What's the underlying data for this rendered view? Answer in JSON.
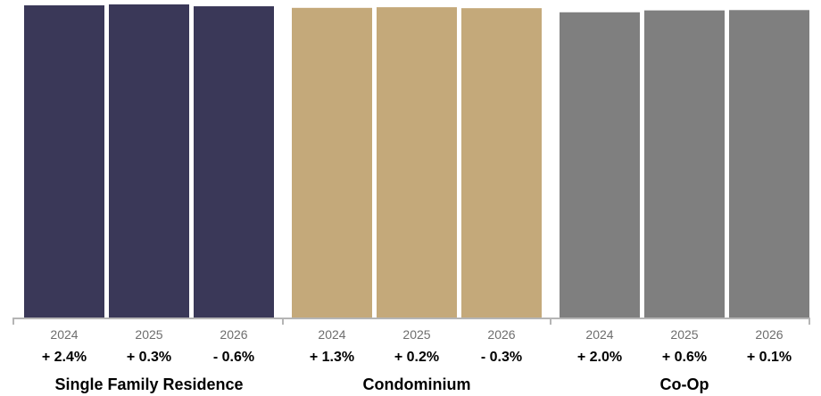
{
  "chart_data": {
    "type": "bar",
    "title": "",
    "xlabel": "",
    "ylabel": "",
    "ylim": [
      0,
      100
    ],
    "grid": false,
    "groups": [
      {
        "name": "Single Family Residence",
        "color": "#3a3858",
        "bars": [
          {
            "year": "2024",
            "value": 98.6,
            "label": "98.6%",
            "change": "+ 2.4%"
          },
          {
            "year": "2025",
            "value": 98.9,
            "label": "98.9%",
            "change": "+ 0.3%"
          },
          {
            "year": "2026",
            "value": 98.3,
            "label": "98.3%",
            "change": "- 0.6%"
          }
        ]
      },
      {
        "name": "Condominium",
        "color": "#c4a97a",
        "bars": [
          {
            "year": "2024",
            "value": 97.8,
            "label": "97.8%",
            "change": "+ 1.3%"
          },
          {
            "year": "2025",
            "value": 98.0,
            "label": "98.0%",
            "change": "+ 0.2%"
          },
          {
            "year": "2026",
            "value": 97.7,
            "label": "97.7%",
            "change": "- 0.3%"
          }
        ]
      },
      {
        "name": "Co-Op",
        "color": "#7f7f7f",
        "bars": [
          {
            "year": "2024",
            "value": 96.4,
            "label": "96.4%",
            "change": "+ 2.0%"
          },
          {
            "year": "2025",
            "value": 97.0,
            "label": "97.0%",
            "change": "+ 0.6%"
          },
          {
            "year": "2026",
            "value": 97.1,
            "label": "97.1%",
            "change": "+ 0.1%"
          }
        ]
      }
    ]
  }
}
